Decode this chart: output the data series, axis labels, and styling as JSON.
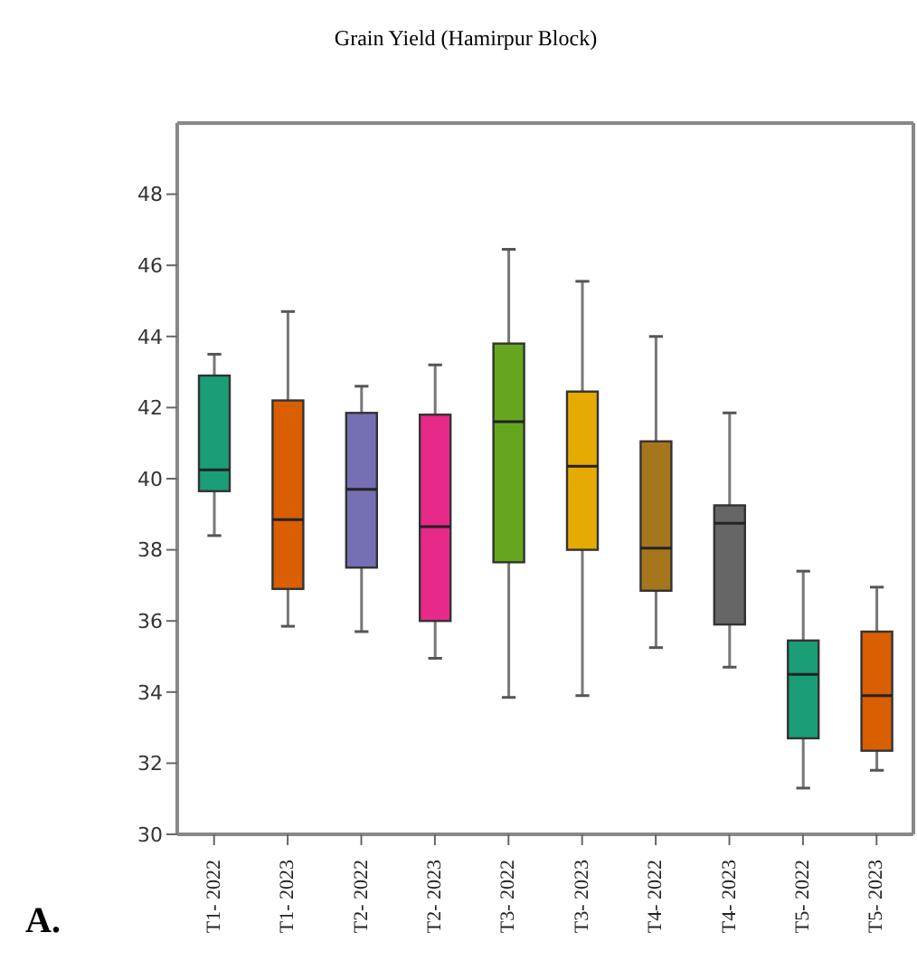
{
  "chart_data": {
    "type": "box",
    "title": "Grain Yield (Hamirpur Block)",
    "categories": [
      "T1- 2022",
      "T1- 2023",
      "T2- 2022",
      "T2- 2023",
      "T3- 2022",
      "T3- 2023",
      "T4- 2022",
      "T4- 2023",
      "T5- 2022",
      "T5- 2023"
    ],
    "colors": [
      "#1b9e77",
      "#d95f02",
      "#7570b3",
      "#e7298a",
      "#66a61e",
      "#e6ab02",
      "#a6761d",
      "#666666",
      "#1b9e77",
      "#d95f02"
    ],
    "boxes": [
      {
        "low": 38.4,
        "q1": 39.65,
        "median": 40.25,
        "q3": 42.9,
        "high": 43.5
      },
      {
        "low": 35.85,
        "q1": 36.9,
        "median": 38.85,
        "q3": 42.2,
        "high": 44.7
      },
      {
        "low": 35.7,
        "q1": 37.5,
        "median": 39.7,
        "q3": 41.85,
        "high": 42.6
      },
      {
        "low": 34.95,
        "q1": 36.0,
        "median": 38.65,
        "q3": 41.8,
        "high": 43.2
      },
      {
        "low": 33.85,
        "q1": 37.65,
        "median": 41.6,
        "q3": 43.8,
        "high": 46.45
      },
      {
        "low": 33.9,
        "q1": 38.0,
        "median": 40.35,
        "q3": 42.45,
        "high": 45.55
      },
      {
        "low": 35.25,
        "q1": 36.85,
        "median": 38.05,
        "q3": 41.05,
        "high": 44.0
      },
      {
        "low": 34.7,
        "q1": 35.9,
        "median": 38.75,
        "q3": 39.25,
        "high": 41.85
      },
      {
        "low": 31.3,
        "q1": 32.7,
        "median": 34.5,
        "q3": 35.45,
        "high": 37.4
      },
      {
        "low": 31.8,
        "q1": 32.35,
        "median": 33.9,
        "q3": 35.7,
        "high": 36.95
      }
    ],
    "ylim": [
      30,
      50
    ],
    "yticks": [
      30,
      32,
      34,
      36,
      38,
      40,
      42,
      44,
      46,
      48
    ],
    "annotations": [
      "A."
    ]
  }
}
